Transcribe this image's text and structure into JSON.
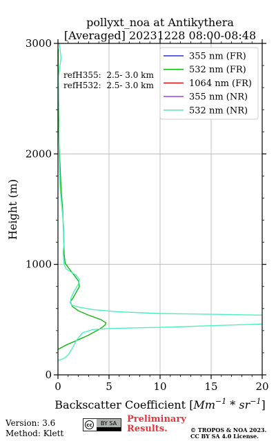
{
  "chart_data": {
    "type": "line",
    "title": "pollyxt_noa at Antikythera",
    "subtitle": "[Averaged] 20231228 08:00-08:48",
    "xlabel_prefix": "Backscatter Coefficient [",
    "xlabel_math_base1": "Mm",
    "xlabel_math_sup1": "−1",
    "xlabel_math_mid": " * ",
    "xlabel_math_base2": "sr",
    "xlabel_math_sup2": "−1",
    "xlabel_suffix": "]",
    "ylabel": "Height (m)",
    "xlim": [
      0,
      20
    ],
    "ylim": [
      0,
      3000
    ],
    "x_ticks": [
      0,
      5,
      10,
      15,
      20
    ],
    "y_ticks": [
      0,
      1000,
      2000,
      3000
    ],
    "grid": true,
    "legend_position": "top-right",
    "annotations": [
      "refH355:  2.5- 3.0 km",
      "refH532:  2.5- 3.0 km"
    ],
    "series": [
      {
        "name": "355 nm (FR)",
        "color": "#2a2ae0",
        "points": []
      },
      {
        "name": "532 nm (FR)",
        "color": "#11b811",
        "points": [
          [
            0.0,
            230
          ],
          [
            0.8,
            270
          ],
          [
            1.8,
            310
          ],
          [
            3.0,
            360
          ],
          [
            4.0,
            410
          ],
          [
            4.6,
            450
          ],
          [
            4.7,
            470
          ],
          [
            4.2,
            500
          ],
          [
            3.0,
            540
          ],
          [
            2.0,
            580
          ],
          [
            1.4,
            620
          ],
          [
            1.2,
            660
          ],
          [
            1.5,
            700
          ],
          [
            1.8,
            750
          ],
          [
            2.1,
            800
          ],
          [
            2.0,
            850
          ],
          [
            1.6,
            900
          ],
          [
            1.1,
            960
          ],
          [
            0.7,
            1010
          ],
          [
            0.6,
            1100
          ],
          [
            0.55,
            1300
          ],
          [
            0.45,
            1500
          ],
          [
            0.3,
            1700
          ],
          [
            0.2,
            1900
          ],
          [
            0.1,
            2100
          ],
          [
            0.05,
            2400
          ],
          [
            0.03,
            2700
          ],
          [
            0.02,
            2950
          ]
        ]
      },
      {
        "name": "1064 nm (FR)",
        "color": "#e01b1b",
        "points": []
      },
      {
        "name": "355 nm (NR)",
        "color": "#a050e0",
        "points": []
      },
      {
        "name": "532 nm (NR)",
        "color": "#4cf0c0",
        "points": [
          [
            0.0,
            130
          ],
          [
            0.6,
            150
          ],
          [
            1.0,
            180
          ],
          [
            1.4,
            240
          ],
          [
            1.8,
            310
          ],
          [
            2.4,
            380
          ],
          [
            3.4,
            410
          ],
          [
            5.0,
            420
          ],
          [
            10.0,
            430
          ],
          [
            15.0,
            445
          ],
          [
            20.0,
            460
          ],
          [
            20.5,
            470
          ],
          [
            20.5,
            540
          ],
          [
            15.0,
            548
          ],
          [
            10.0,
            555
          ],
          [
            6.0,
            570
          ],
          [
            3.5,
            590
          ],
          [
            2.2,
            610
          ],
          [
            1.4,
            630
          ],
          [
            1.2,
            650
          ],
          [
            1.3,
            700
          ],
          [
            1.6,
            760
          ],
          [
            2.0,
            820
          ],
          [
            2.1,
            860
          ],
          [
            1.8,
            900
          ],
          [
            1.3,
            930
          ],
          [
            0.8,
            960
          ],
          [
            0.6,
            1000
          ],
          [
            0.5,
            1100
          ],
          [
            0.6,
            1200
          ],
          [
            0.55,
            1350
          ],
          [
            0.4,
            1500
          ],
          [
            0.2,
            1700
          ],
          [
            0.15,
            1850
          ],
          [
            0.1,
            2100
          ],
          [
            0.12,
            2300
          ],
          [
            0.08,
            2500
          ],
          [
            0.05,
            2700
          ],
          [
            0.2,
            2800
          ],
          [
            0.3,
            2870
          ],
          [
            0.2,
            2950
          ],
          [
            0.1,
            3000
          ]
        ]
      }
    ]
  },
  "footer": {
    "version": "Version: 3.6",
    "method": "Method: Klett",
    "preliminary": "Preliminary Results.",
    "copyright": "© TROPOS & NOA 2023. CC BY SA 4.0 License.",
    "license_badge": "cc",
    "license_badge_sub": "BY  SA"
  }
}
